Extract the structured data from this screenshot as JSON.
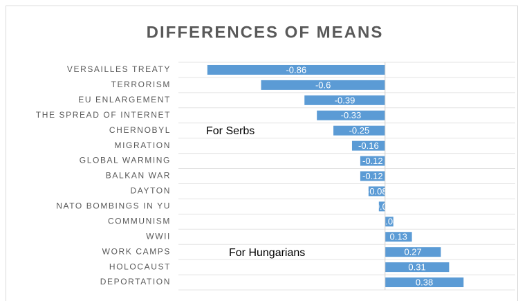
{
  "chart_data": {
    "type": "bar",
    "orientation": "horizontal",
    "title": "DIFFERENCES OF MEANS",
    "categories": [
      "VERSAILLES TREATY",
      "TERRORISM",
      "EU ENLARGEMENT",
      "THE SPREAD OF INTERNET",
      "CHERNOBYL",
      "MIGRATION",
      "GLOBAL WARMING",
      "BALKAN WAR",
      "DAYTON",
      "NATO BOMBINGS IN YU",
      "COMMUNISM",
      "WWII",
      "WORK CAMPS",
      "HOLOCAUST",
      "DEPORTATION"
    ],
    "values": [
      -0.86,
      -0.6,
      -0.39,
      -0.33,
      -0.25,
      -0.16,
      -0.12,
      -0.12,
      -0.08,
      -0.03,
      0.04,
      0.13,
      0.27,
      0.31,
      0.38
    ],
    "color": "#5b9bd5",
    "xlim": [
      -1,
      0.63
    ],
    "annotations": [
      "For Serbs",
      "For Hungarians"
    ]
  }
}
